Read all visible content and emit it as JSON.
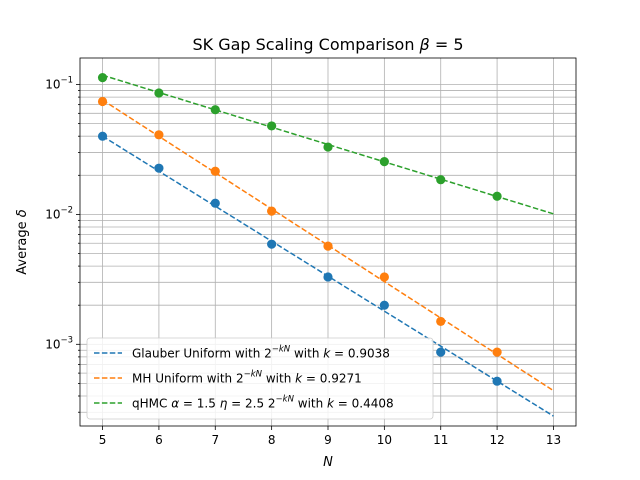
{
  "chart_data": {
    "type": "scatter",
    "title": "SK Gap Scaling Comparison",
    "title_math": "β = 5",
    "xlabel": "N",
    "ylabel": "Average",
    "ylabel_symbol": "δ",
    "x_ticks": [
      5,
      6,
      7,
      8,
      9,
      10,
      11,
      12,
      13
    ],
    "xlim": [
      4.6,
      13.4
    ],
    "ylim": [
      0.000235,
      0.16
    ],
    "yscale": "log",
    "y_ticks": [
      {
        "base": "10",
        "exp": "−3",
        "value": 0.001
      },
      {
        "base": "10",
        "exp": "−2",
        "value": 0.01
      },
      {
        "base": "10",
        "exp": "−1",
        "value": 0.1
      }
    ],
    "grid": true,
    "legend_position": "lower-left",
    "series": [
      {
        "name": "Glauber Uniform with 2^{-kN} with k = 0.9038",
        "label_parts": [
          "Glauber Uniform with 2",
          "−kN",
          " with ",
          "k",
          " = 0.9038"
        ],
        "color": "#1f77b4",
        "x": [
          5,
          6,
          7,
          8,
          9,
          10,
          11,
          12
        ],
        "y": [
          0.04,
          0.0227,
          0.0122,
          0.0059,
          0.0033,
          0.002,
          0.00087,
          0.00052
        ],
        "fit": {
          "x": [
            5,
            13
          ],
          "y": [
            0.04,
            0.00028
          ]
        }
      },
      {
        "name": "MH Uniform with 2^{-kN} with k = 0.9271",
        "label_parts": [
          "MH Uniform with 2",
          "−kN",
          " with ",
          "k",
          " = 0.9271"
        ],
        "color": "#ff7f0e",
        "x": [
          5,
          6,
          7,
          8,
          9,
          10,
          11,
          12
        ],
        "y": [
          0.074,
          0.041,
          0.0215,
          0.0106,
          0.0057,
          0.0033,
          0.0015,
          0.00087
        ],
        "fit": {
          "x": [
            5,
            13
          ],
          "y": [
            0.076,
            0.00044
          ]
        }
      },
      {
        "name": "qHMC α = 1.5 η = 2.5 2^{-kN} with k = 0.4408",
        "label_parts": [
          "qHMC ",
          "α",
          " = 1.5 ",
          "η",
          " = 2.5 2",
          "−kN",
          " with ",
          "k",
          " = 0.4408"
        ],
        "color": "#2ca02c",
        "x": [
          5,
          6,
          7,
          8,
          9,
          10,
          11,
          12
        ],
        "y": [
          0.113,
          0.086,
          0.064,
          0.048,
          0.033,
          0.0255,
          0.0185,
          0.0138
        ],
        "fit": {
          "x": [
            5,
            13
          ],
          "y": [
            0.118,
            0.0101
          ]
        }
      }
    ]
  }
}
